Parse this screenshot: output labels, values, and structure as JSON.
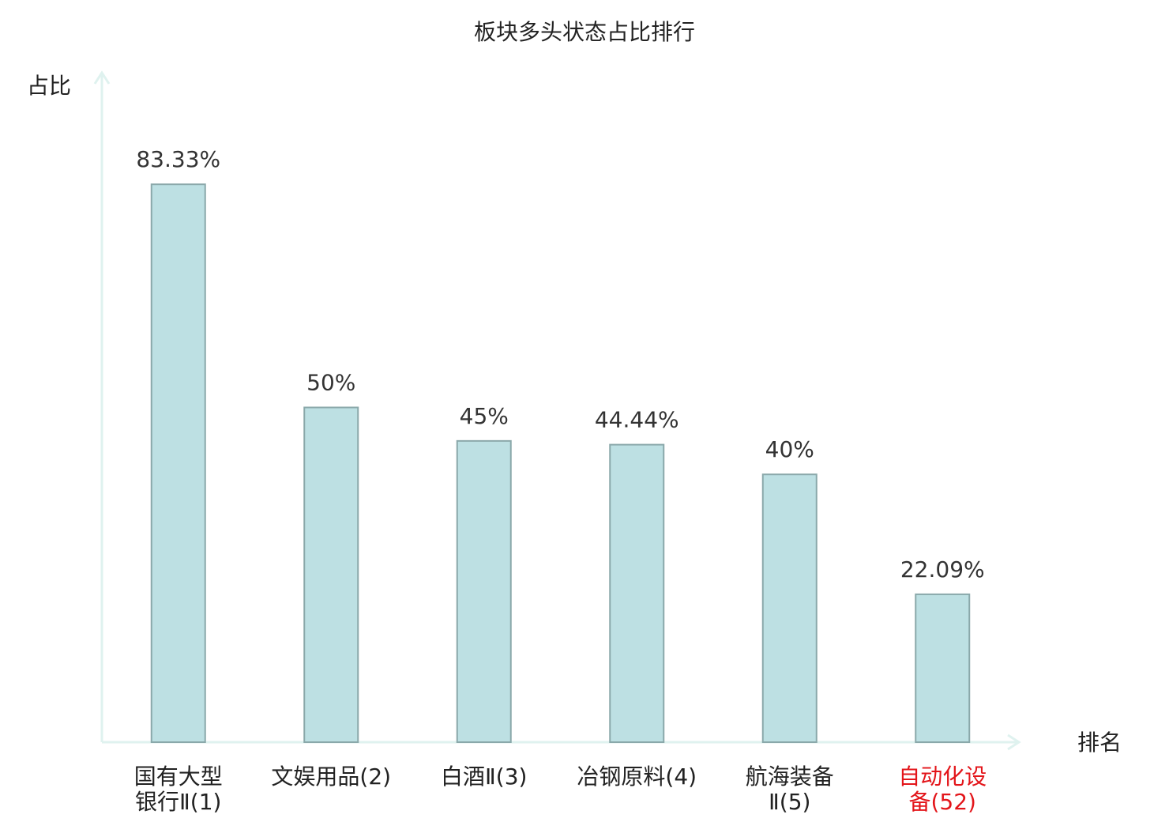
{
  "chart_data": {
    "type": "bar",
    "title": "板块多头状态占比排行",
    "y_label": "占比",
    "x_label": "排名",
    "categories": [
      "国有大型银行Ⅱ(1)",
      "文娱用品(2)",
      "白酒Ⅱ(3)",
      "冶钢原料(4)",
      "航海装备Ⅱ(5)",
      "自动化设备(52)"
    ],
    "values": [
      83.33,
      50,
      45,
      44.44,
      40,
      22.09
    ],
    "value_labels": [
      "83.33%",
      "50%",
      "45%",
      "44.44%",
      "40%",
      "22.09%"
    ],
    "color": "#bde0e3",
    "edge_color": "#8aa8aa",
    "axis_color": "#dff2ef",
    "highlight": {
      "index": 5,
      "color": "#e3151a"
    },
    "ylim": [
      0,
      100
    ]
  }
}
